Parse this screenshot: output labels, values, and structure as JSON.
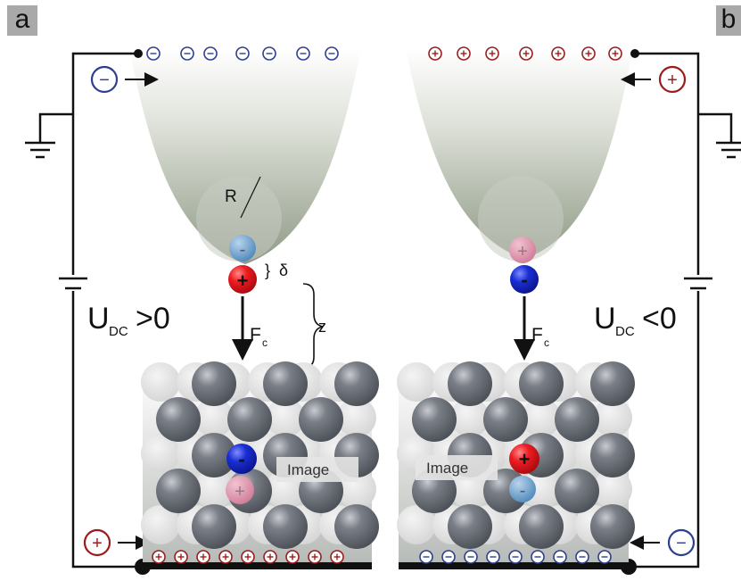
{
  "panels": [
    {
      "id": "a",
      "tag": "a",
      "voltage_main": "U",
      "voltage_sub": "DC",
      "voltage_relation": ">0",
      "force_main": "F",
      "force_sub": "c",
      "radius_label": "R",
      "gap_label": "δ",
      "distance_label": "z",
      "image_label": "Image",
      "tip_charge_sign": "−",
      "bottom_charge_sign": "+",
      "probe_atom_sign": "+",
      "tip_apex_sign": "-",
      "surface_atom_sign": "-",
      "image_charge_sign": "+"
    },
    {
      "id": "b",
      "tag": "b",
      "voltage_main": "U",
      "voltage_sub": "DC",
      "voltage_relation": "<0",
      "force_main": "F",
      "force_sub": "c",
      "image_label": "Image",
      "tip_charge_sign": "+",
      "bottom_charge_sign": "−",
      "probe_atom_sign": "-",
      "tip_apex_sign": "+",
      "surface_atom_sign": "+",
      "image_charge_sign": "-"
    }
  ],
  "colors": {
    "negative_charge": "#2d3f8f",
    "positive_charge": "#9b1c1c",
    "tip_gradient_top": "#ffffff",
    "tip_gradient_bottom": "#98a28e",
    "atom_dark": "#6b6f76",
    "atom_light": "#dcdcdc",
    "red_atom": "#e8141c",
    "blue_atom": "#1226c8",
    "pink_atom": "#d98fa6",
    "lightblue_atom": "#6fa2cc",
    "wire": "#111111"
  },
  "icons": [
    "ground-icon",
    "battery-icon",
    "arrow-icon",
    "brace-icon"
  ]
}
